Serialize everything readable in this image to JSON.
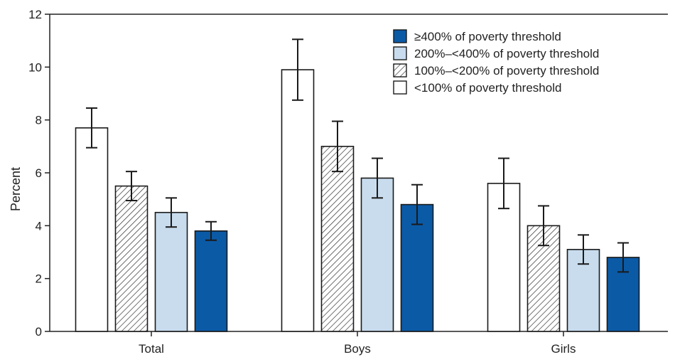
{
  "chart_data": {
    "type": "bar",
    "title": "",
    "xlabel": "",
    "ylabel": "Percent",
    "ylim": [
      0,
      12
    ],
    "yticks": [
      0,
      2,
      4,
      6,
      8,
      10,
      12
    ],
    "grid": false,
    "legend_position": "top-right",
    "categories": [
      "Total",
      "Boys",
      "Girls"
    ],
    "series": [
      {
        "name": "<100% of poverty threshold",
        "fill": "#ffffff",
        "pattern": "none",
        "values": [
          7.7,
          9.9,
          5.6
        ],
        "ci_low": [
          6.95,
          8.75,
          4.65
        ],
        "ci_high": [
          8.45,
          11.05,
          6.55
        ]
      },
      {
        "name": "100%–<200% of poverty threshold",
        "fill": "#ffffff",
        "pattern": "diagonal-hatch",
        "values": [
          5.5,
          7.0,
          4.0
        ],
        "ci_low": [
          4.95,
          6.05,
          3.25
        ],
        "ci_high": [
          6.05,
          7.95,
          4.75
        ]
      },
      {
        "name": "200%–<400% of poverty threshold",
        "fill": "#c8dcee",
        "pattern": "none",
        "values": [
          4.5,
          5.8,
          3.1
        ],
        "ci_low": [
          3.95,
          5.05,
          2.55
        ],
        "ci_high": [
          5.05,
          6.55,
          3.65
        ]
      },
      {
        "name": "≥400% of poverty threshold",
        "fill": "#0b5aa6",
        "pattern": "none",
        "values": [
          3.8,
          4.8,
          2.8
        ],
        "ci_low": [
          3.45,
          4.05,
          2.25
        ],
        "ci_high": [
          4.15,
          5.55,
          3.35
        ]
      }
    ],
    "legend_order": [
      "≥400% of poverty threshold",
      "200%–<400% of poverty threshold",
      "100%–<200% of poverty threshold",
      "<100% of poverty threshold"
    ]
  }
}
